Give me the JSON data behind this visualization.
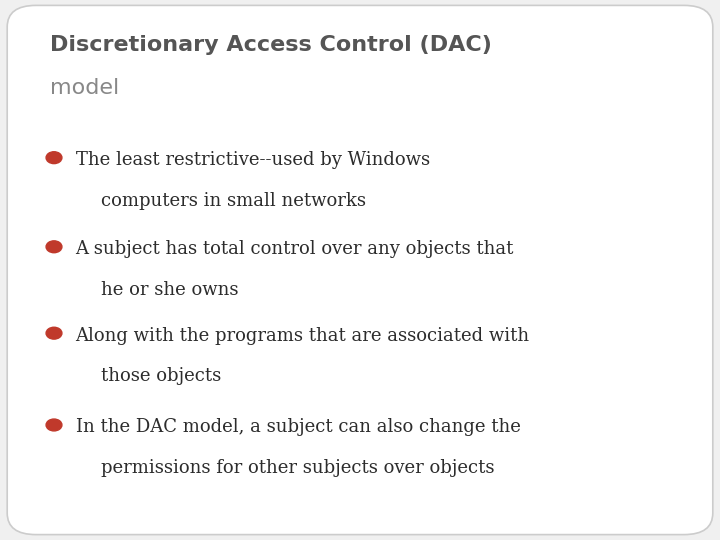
{
  "title_line1": "Discretionary Access Control (DAC)",
  "title_line2": "model",
  "title1_color": "#555555",
  "title2_color": "#888888",
  "bullet_color": "#c0392b",
  "text_color": "#2c2c2c",
  "bg_color": "#f0f0f0",
  "box_color": "#ffffff",
  "border_color": "#cccccc",
  "bullets": [
    [
      "The least restrictive--used by Windows",
      "computers in small networks"
    ],
    [
      "A subject has total control over any objects that",
      "he or she owns"
    ],
    [
      "Along with the programs that are associated with",
      "those objects"
    ],
    [
      "In the DAC model, a subject can also change the",
      "permissions for other subjects over objects"
    ]
  ],
  "title_fontsize": 16,
  "subtitle_fontsize": 16,
  "bullet_fontsize": 13,
  "figsize": [
    7.2,
    5.4
  ],
  "dpi": 100
}
